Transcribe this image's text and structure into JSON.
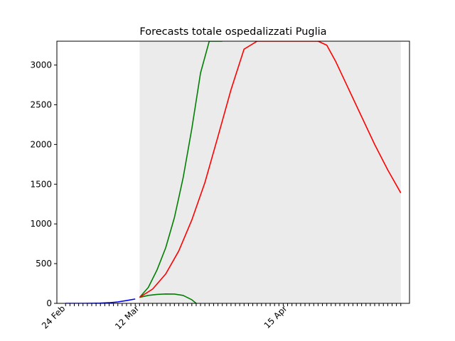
{
  "chart_data": {
    "type": "line",
    "title": "Forecasts totale ospedalizzati Puglia",
    "xlabel": "",
    "ylabel": "",
    "x_range": [
      "2020-02-22",
      "2020-05-13"
    ],
    "ylim": [
      0,
      3300
    ],
    "y_ticks": [
      0,
      500,
      1000,
      1500,
      2000,
      2500,
      3000
    ],
    "x_tick_labels": [
      {
        "date": "2020-02-24",
        "label": "24 Feb"
      },
      {
        "date": "2020-03-12",
        "label": "12 Mar"
      },
      {
        "date": "2020-04-15",
        "label": "15 Apr"
      }
    ],
    "minor_tick_start": "2020-02-24",
    "minor_tick_end": "2020-05-11",
    "forecast_region": [
      "2020-03-12",
      "2020-05-11"
    ],
    "grid": false,
    "series": [
      {
        "color": "#0000ff",
        "x": [
          "2020-02-24",
          "2020-02-26",
          "2020-02-28",
          "2020-03-01",
          "2020-03-03",
          "2020-03-05",
          "2020-03-07",
          "2020-03-09",
          "2020-03-11"
        ],
        "y": [
          0,
          0,
          0,
          1,
          3,
          8,
          18,
          35,
          55
        ]
      },
      {
        "color": "#008000",
        "x": [
          "2020-03-12",
          "2020-03-14",
          "2020-03-16",
          "2020-03-18",
          "2020-03-20",
          "2020-03-22",
          "2020-03-24",
          "2020-03-26",
          "2020-03-28",
          "2020-03-30",
          "2020-03-31"
        ],
        "y": [
          75,
          200,
          420,
          700,
          1080,
          1580,
          2200,
          2900,
          3300,
          3300,
          3300
        ]
      },
      {
        "color": "#008000",
        "x": [
          "2020-03-12",
          "2020-03-14",
          "2020-03-16",
          "2020-03-18",
          "2020-03-20",
          "2020-03-22",
          "2020-03-24",
          "2020-03-25"
        ],
        "y": [
          75,
          100,
          112,
          118,
          117,
          100,
          45,
          0
        ]
      },
      {
        "color": "#ff0000",
        "x": [
          "2020-03-12",
          "2020-03-15",
          "2020-03-18",
          "2020-03-21",
          "2020-03-24",
          "2020-03-27",
          "2020-03-30",
          "2020-04-02",
          "2020-04-05",
          "2020-04-08",
          "2020-04-10",
          "2020-04-12",
          "2020-04-14",
          "2020-04-16",
          "2020-04-18",
          "2020-04-20",
          "2020-04-22",
          "2020-04-24",
          "2020-04-26",
          "2020-04-29",
          "2020-05-02",
          "2020-05-05",
          "2020-05-08",
          "2020-05-11"
        ],
        "y": [
          75,
          180,
          370,
          660,
          1050,
          1520,
          2100,
          2690,
          3200,
          3300,
          3300,
          3300,
          3300,
          3300,
          3300,
          3300,
          3300,
          3250,
          3050,
          2700,
          2350,
          2000,
          1680,
          1390
        ]
      }
    ]
  }
}
